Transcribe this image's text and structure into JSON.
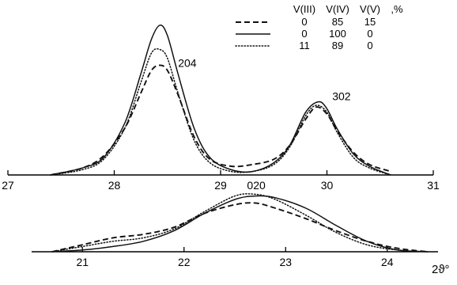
{
  "chart_data": [
    {
      "type": "line",
      "panel": "top",
      "xlabel": "",
      "ylabel": "",
      "xlim": [
        27,
        31
      ],
      "x_ticks": [
        27,
        28,
        29,
        30,
        31
      ],
      "x_tick_labels": [
        "27",
        "28",
        "29",
        "30",
        "31"
      ],
      "peak_labels": [
        {
          "text": "204",
          "x": 28.6,
          "y": 0.62
        },
        {
          "text": "302",
          "x": 30.05,
          "y": 0.43
        }
      ],
      "legend": {
        "placement": "top-right",
        "headers": [
          "V(III)",
          "V(IV)",
          "V(V)",
          ",%"
        ],
        "rows": [
          {
            "style": "dashed",
            "values": [
              "0",
              "85",
              "15"
            ]
          },
          {
            "style": "solid",
            "values": [
              "0",
              "100",
              "0"
            ]
          },
          {
            "style": "dotted",
            "values": [
              "11",
              "89",
              "0"
            ]
          }
        ]
      },
      "series": [
        {
          "style": "dashed",
          "x": [
            27.4,
            27.7,
            27.9,
            28.1,
            28.25,
            28.35,
            28.43,
            28.5,
            28.6,
            28.75,
            28.9,
            29.1,
            29.3,
            29.5,
            29.65,
            29.8,
            29.9,
            30.0,
            30.1,
            30.25,
            30.4,
            30.6
          ],
          "y": [
            0.0,
            0.04,
            0.11,
            0.27,
            0.47,
            0.6,
            0.63,
            0.6,
            0.46,
            0.22,
            0.09,
            0.05,
            0.06,
            0.09,
            0.17,
            0.32,
            0.39,
            0.35,
            0.25,
            0.13,
            0.06,
            0.02
          ]
        },
        {
          "style": "solid",
          "x": [
            27.4,
            27.7,
            27.9,
            28.1,
            28.25,
            28.35,
            28.43,
            28.5,
            28.6,
            28.75,
            28.9,
            29.1,
            29.3,
            29.5,
            29.65,
            29.8,
            29.92,
            30.0,
            30.1,
            30.25,
            30.4,
            30.6
          ],
          "y": [
            0.0,
            0.04,
            0.1,
            0.3,
            0.58,
            0.78,
            0.86,
            0.8,
            0.58,
            0.27,
            0.1,
            0.03,
            0.02,
            0.07,
            0.17,
            0.36,
            0.42,
            0.38,
            0.26,
            0.12,
            0.05,
            0.0
          ]
        },
        {
          "style": "dotted",
          "x": [
            27.4,
            27.7,
            27.9,
            28.1,
            28.25,
            28.35,
            28.43,
            28.5,
            28.6,
            28.75,
            28.9,
            29.1,
            29.3,
            29.5,
            29.65,
            29.8,
            29.9,
            30.0,
            30.1,
            30.25,
            30.4,
            30.6
          ],
          "y": [
            0.0,
            0.03,
            0.09,
            0.27,
            0.53,
            0.7,
            0.72,
            0.67,
            0.47,
            0.2,
            0.07,
            0.02,
            0.02,
            0.06,
            0.16,
            0.34,
            0.4,
            0.36,
            0.24,
            0.1,
            0.04,
            0.0
          ]
        }
      ]
    },
    {
      "type": "line",
      "panel": "bottom",
      "xlabel": "2ϑ°",
      "ylabel": "",
      "xlim": [
        20.5,
        24.5
      ],
      "x_ticks": [
        21,
        22,
        23,
        24
      ],
      "x_tick_labels": [
        "21",
        "22",
        "23",
        "24"
      ],
      "peak_labels": [
        {
          "text": "020",
          "x": 22.62,
          "y": 0.36
        }
      ],
      "series": [
        {
          "style": "dashed",
          "x": [
            20.7,
            21.0,
            21.3,
            21.6,
            21.9,
            22.2,
            22.5,
            22.7,
            22.9,
            23.2,
            23.5,
            23.8,
            24.1,
            24.4
          ],
          "y": [
            0.0,
            0.04,
            0.08,
            0.1,
            0.14,
            0.22,
            0.27,
            0.28,
            0.25,
            0.19,
            0.12,
            0.06,
            0.02,
            0.0
          ]
        },
        {
          "style": "solid",
          "x": [
            20.7,
            21.0,
            21.3,
            21.6,
            21.9,
            22.2,
            22.5,
            22.7,
            22.9,
            23.2,
            23.5,
            23.8,
            24.1,
            24.4
          ],
          "y": [
            0.0,
            0.01,
            0.03,
            0.06,
            0.12,
            0.22,
            0.3,
            0.32,
            0.31,
            0.25,
            0.15,
            0.06,
            0.01,
            0.0
          ]
        },
        {
          "style": "dotted",
          "x": [
            20.7,
            21.0,
            21.3,
            21.6,
            21.9,
            22.2,
            22.5,
            22.7,
            22.9,
            23.2,
            23.5,
            23.8,
            24.1,
            24.4
          ],
          "y": [
            0.0,
            0.03,
            0.06,
            0.08,
            0.13,
            0.23,
            0.32,
            0.33,
            0.3,
            0.21,
            0.11,
            0.04,
            0.01,
            0.0
          ]
        }
      ]
    }
  ]
}
